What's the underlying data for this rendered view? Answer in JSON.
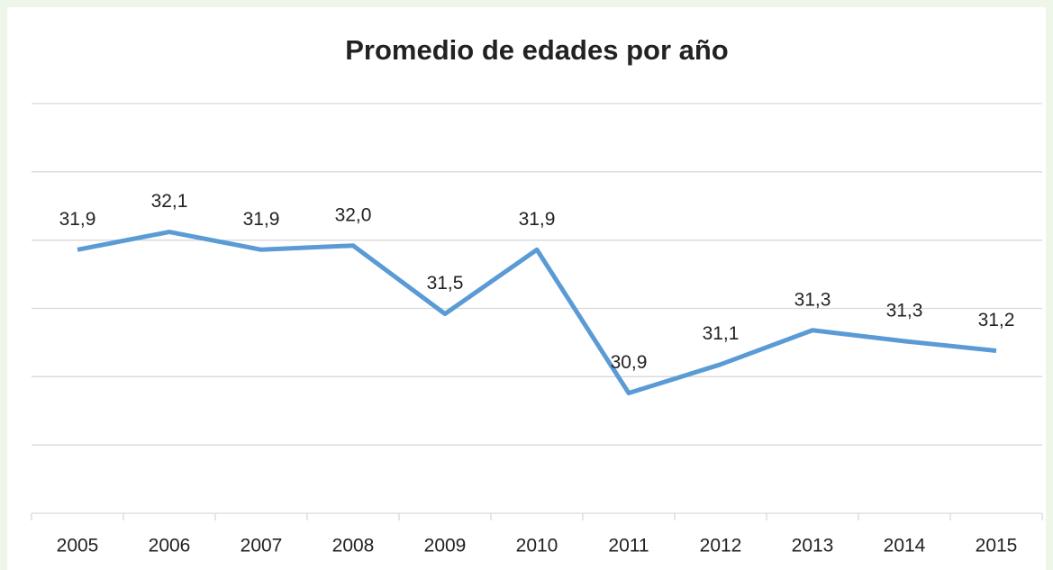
{
  "chart_data": {
    "type": "line",
    "title": "Promedio de edades por año",
    "categories": [
      "2005",
      "2006",
      "2007",
      "2008",
      "2009",
      "2010",
      "2011",
      "2012",
      "2013",
      "2014",
      "2015"
    ],
    "series": [
      {
        "color": "#5b9bd5",
        "values": [
          31.93,
          32.06,
          31.93,
          31.96,
          31.46,
          31.93,
          30.88,
          31.09,
          31.34,
          31.26,
          31.19
        ],
        "value_labels": [
          "31,9",
          "32,1",
          "31,9",
          "32,0",
          "31,5",
          "31,9",
          "30,9",
          "31,1",
          "31,3",
          "31,3",
          "31,2"
        ]
      }
    ],
    "ylim": [
      30,
      33
    ],
    "yticks": [
      30,
      30.5,
      31,
      31.5,
      32,
      32.5,
      33
    ],
    "grid": true
  }
}
